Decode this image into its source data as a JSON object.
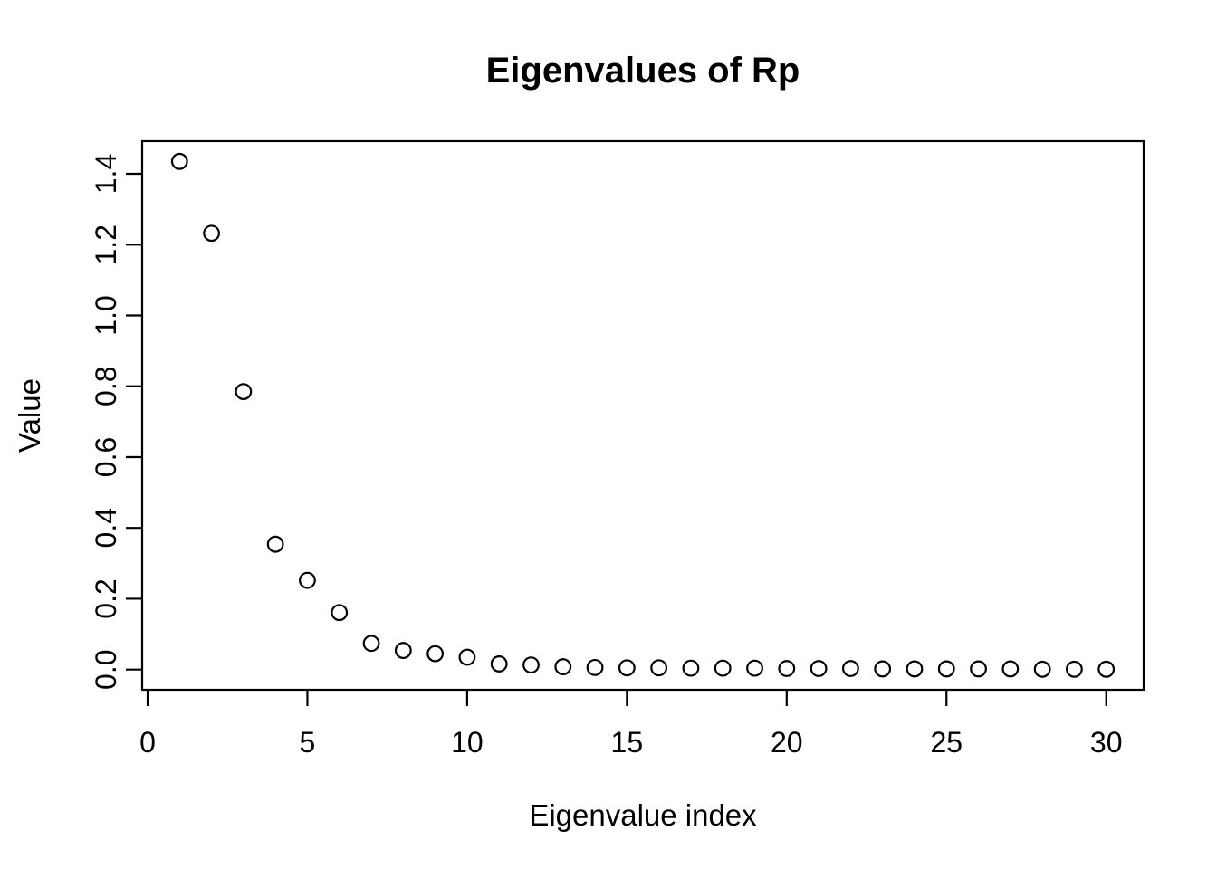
{
  "chart_data": {
    "type": "scatter",
    "title": "Eigenvalues of Rp",
    "xlabel": "Eigenvalue index",
    "ylabel": "Value",
    "x": [
      1,
      2,
      3,
      4,
      5,
      6,
      7,
      8,
      9,
      10,
      11,
      12,
      13,
      14,
      15,
      16,
      17,
      18,
      19,
      20,
      21,
      22,
      23,
      24,
      25,
      26,
      27,
      28,
      29,
      30
    ],
    "values": [
      1.435,
      1.232,
      0.785,
      0.354,
      0.252,
      0.161,
      0.074,
      0.054,
      0.045,
      0.035,
      0.016,
      0.013,
      0.008,
      0.006,
      0.005,
      0.005,
      0.004,
      0.004,
      0.004,
      0.003,
      0.003,
      0.003,
      0.002,
      0.002,
      0.002,
      0.002,
      0.002,
      0.001,
      0.001,
      0.001
    ],
    "xlim": [
      -0.17,
      31.17
    ],
    "ylim": [
      -0.057,
      1.492
    ],
    "xticks": [
      0,
      5,
      10,
      15,
      20,
      25,
      30
    ],
    "yticks": [
      0.0,
      0.2,
      0.4,
      0.6,
      0.8,
      1.0,
      1.2,
      1.4
    ],
    "ytick_decimals": 1,
    "marker": "open-circle",
    "grid": false,
    "legend_position": "none",
    "colors": {
      "points": "#000000",
      "axes": "#000000",
      "text": "#000000",
      "background": "#ffffff"
    }
  }
}
